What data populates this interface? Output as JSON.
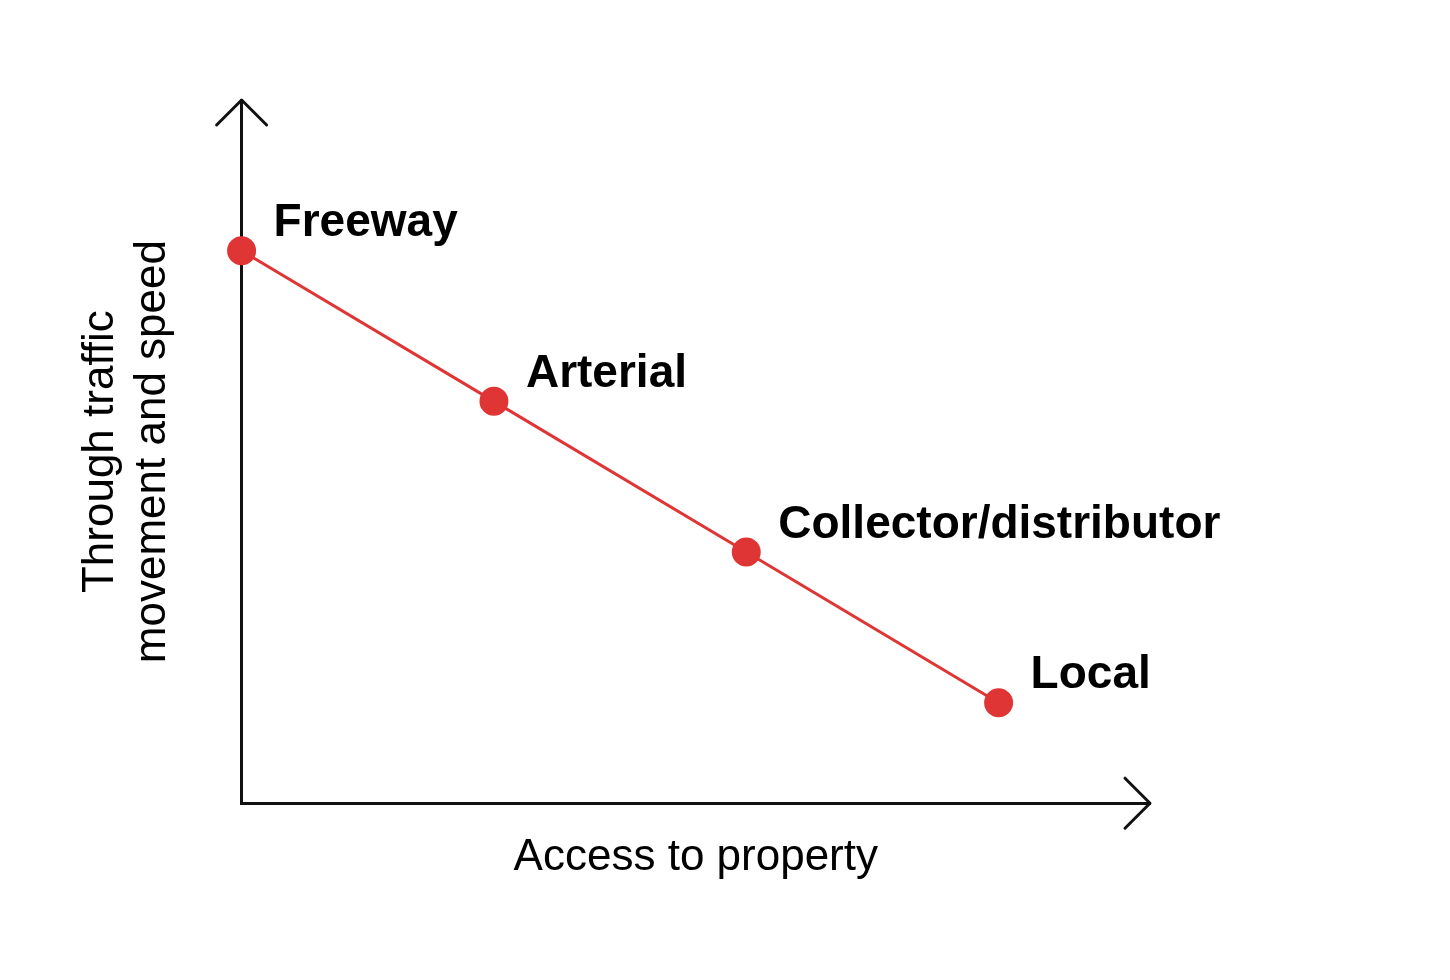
{
  "chart_data": {
    "type": "line",
    "x": [
      0,
      5,
      10,
      15
    ],
    "values": [
      11,
      8,
      5,
      2
    ],
    "point_labels": [
      "Freeway",
      "Arterial",
      "Collector/distributor",
      "Local"
    ],
    "xlabel": "Access to property",
    "ylabel": [
      "Through traffic",
      "movement and speed"
    ],
    "xlim": [
      0,
      18
    ],
    "ylim": [
      0,
      14
    ],
    "tick_labels": false,
    "grid": false,
    "color": "#e03535",
    "marker": "circle"
  }
}
